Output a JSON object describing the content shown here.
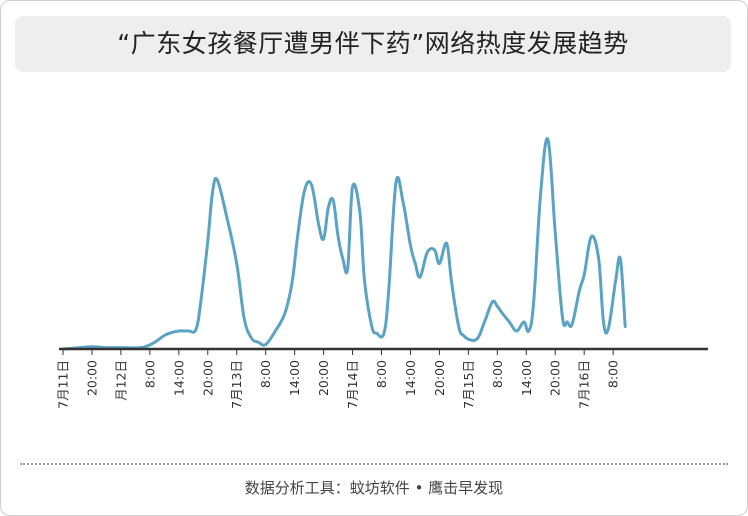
{
  "header": {
    "title": "“广东女孩餐厅遭男伴下药”网络热度发展趋势"
  },
  "footer": {
    "source": "数据分析工具：蚊坊软件 • 鹰击早发现"
  },
  "colors": {
    "line": "#5aa3c4",
    "axis": "#333333",
    "title_bg": "#eeeeee"
  },
  "chart_data": {
    "type": "line",
    "title": "“广东女孩餐厅遭男伴下药”网络热度发展趋势",
    "xlabel": "",
    "ylabel": "",
    "x_axis": "time (hours since 7月11日 00:00)",
    "xlim": [
      0,
      132
    ],
    "ylim": [
      0,
      100
    ],
    "grid": false,
    "legend": "none",
    "ticks": [
      {
        "x": 0,
        "label": "7月11日"
      },
      {
        "x": 6,
        "label": "20:00"
      },
      {
        "x": 12,
        "label": "月12日"
      },
      {
        "x": 18,
        "label": "8:00"
      },
      {
        "x": 24,
        "label": "14:00"
      },
      {
        "x": 30,
        "label": "20:00"
      },
      {
        "x": 36,
        "label": "7月13日"
      },
      {
        "x": 42,
        "label": "8:00"
      },
      {
        "x": 48,
        "label": "14:00"
      },
      {
        "x": 54,
        "label": "20:00"
      },
      {
        "x": 60,
        "label": "7月14日"
      },
      {
        "x": 66,
        "label": "8:00"
      },
      {
        "x": 72,
        "label": "14:00"
      },
      {
        "x": 78,
        "label": "20:00"
      },
      {
        "x": 84,
        "label": "7月15日"
      },
      {
        "x": 90,
        "label": "8:00"
      },
      {
        "x": 96,
        "label": "14:00"
      },
      {
        "x": 102,
        "label": "20:00"
      },
      {
        "x": 108,
        "label": "7月16日"
      },
      {
        "x": 114,
        "label": "8:00"
      }
    ],
    "series": [
      {
        "name": "",
        "x": [
          0,
          3,
          6,
          9,
          12,
          15,
          17,
          19,
          21,
          22,
          24,
          26,
          27.5,
          28.5,
          30,
          31,
          32,
          34,
          36,
          37.5,
          39,
          40.5,
          42,
          44,
          46,
          47.5,
          48.5,
          50,
          51.5,
          53,
          54,
          55,
          56,
          57,
          58,
          59,
          60,
          61.5,
          62.5,
          64,
          65,
          66.5,
          67.5,
          69,
          70.5,
          72,
          73,
          74,
          75.5,
          77,
          78,
          79.5,
          80.5,
          82,
          83,
          84.5,
          86,
          87.5,
          89,
          90,
          91,
          92.5,
          94,
          95.5,
          96.5,
          97.5,
          99,
          100.5,
          102,
          103.5,
          104.5,
          105.5,
          107,
          108,
          109.5,
          111,
          112,
          113,
          114.5,
          115.5,
          116.5
        ],
        "values": [
          0,
          0.5,
          1,
          0.6,
          0.6,
          0.5,
          1,
          3,
          6,
          7,
          8,
          8,
          8.5,
          20,
          48,
          70,
          75,
          58,
          38,
          14,
          5,
          3,
          2,
          8,
          16,
          30,
          48,
          70,
          73,
          55,
          49,
          63,
          66,
          50,
          40,
          36,
          72,
          61,
          30,
          10,
          7,
          7,
          26,
          74,
          65,
          46,
          38,
          32,
          43,
          44,
          38,
          47,
          30,
          10,
          6,
          4,
          5,
          13,
          21,
          19,
          16,
          12,
          8,
          12,
          8,
          20,
          70,
          93,
          52,
          14,
          12,
          11,
          26,
          33,
          50,
          40,
          12,
          9,
          30,
          40,
          10
        ]
      }
    ]
  }
}
